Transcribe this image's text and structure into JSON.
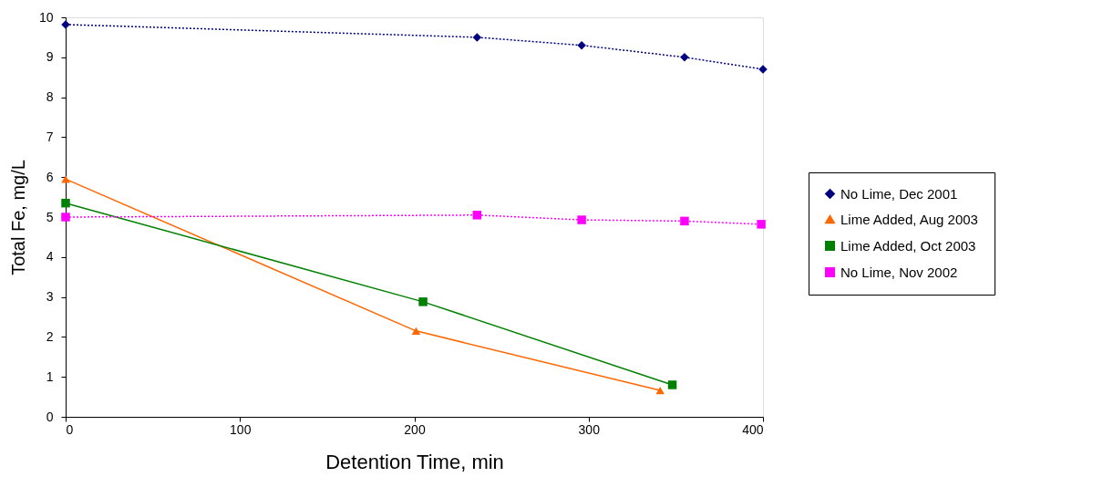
{
  "chart_data": {
    "type": "line",
    "xlabel": "Detention Time, min",
    "ylabel": "Total Fe, mg/L",
    "xlim": [
      0,
      400
    ],
    "xticks": [
      0,
      100,
      200,
      300,
      400
    ],
    "ylim": [
      0,
      10
    ],
    "yticks": [
      0,
      1,
      2,
      3,
      4,
      5,
      6,
      7,
      8,
      9,
      10
    ],
    "grid": false,
    "legend": "right",
    "series": [
      {
        "name": "No Lime, Dec 2001",
        "color": "#000080",
        "marker": "diamond",
        "line_style": "dotted",
        "x": [
          0,
          236,
          296,
          355,
          400
        ],
        "values": [
          9.82,
          9.5,
          9.3,
          9.0,
          8.7
        ]
      },
      {
        "name": "Lime Added, Aug 2003",
        "color": "#ff6600",
        "marker": "triangle",
        "line_style": "solid",
        "x": [
          0,
          201,
          341
        ],
        "values": [
          5.95,
          2.15,
          0.66
        ]
      },
      {
        "name": "Lime Added, Oct 2003",
        "color": "#008000",
        "marker": "square",
        "line_style": "solid",
        "x": [
          0,
          205,
          348
        ],
        "values": [
          5.35,
          2.88,
          0.8
        ]
      },
      {
        "name": "No Lime, Nov 2002",
        "color": "#ff00ff",
        "marker": "square",
        "line_style": "dotted",
        "x": [
          0,
          236,
          296,
          355,
          399
        ],
        "values": [
          5.0,
          5.05,
          4.93,
          4.9,
          4.82
        ]
      }
    ]
  }
}
